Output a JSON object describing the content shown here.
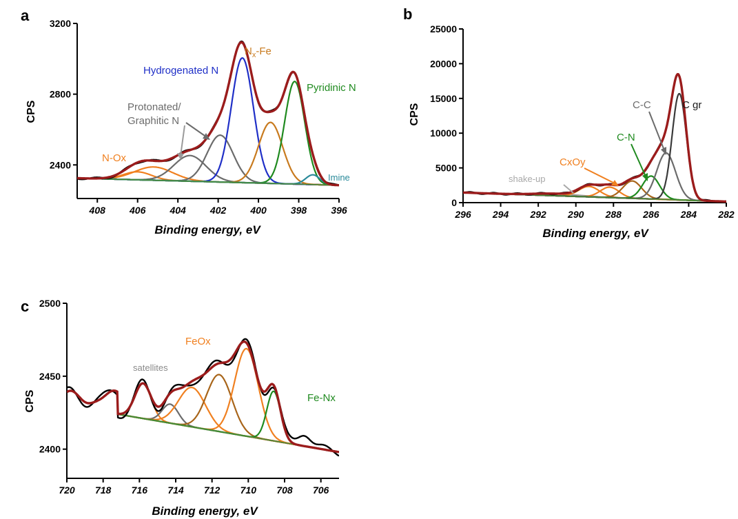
{
  "panels": {
    "a": {
      "letter": "a",
      "xlabel": "Binding energy, eV",
      "ylabel": "CPS",
      "annotations": {
        "hydrogenated": "Hydrogenated N",
        "nxfe_n": "N",
        "nxfe_sub": "x",
        "nxfe_rest": "-Fe",
        "pyridinic": "Pyridinic N",
        "protonated1": "Protonated/",
        "protonated2": "Graphitic N",
        "nox": "N-Ox",
        "imine": "Imine"
      }
    },
    "b": {
      "letter": "b",
      "xlabel": "Binding energy, eV",
      "ylabel": "CPS",
      "annotations": {
        "cc": "C-C",
        "cgr": "C gr",
        "cn": "C-N",
        "cxoy": "CxOy",
        "shakeup": "shake-up"
      }
    },
    "c": {
      "letter": "c",
      "xlabel": "Binding energy, eV",
      "ylabel": "CPS",
      "annotations": {
        "feox": "FeOx",
        "satellites": "satellites",
        "fenx": "Fe-Nx"
      }
    }
  },
  "colors": {
    "measured": "#000000",
    "envelope": "#9b1c1c",
    "background": "#4a8a3a",
    "hydrogenated": "#1f2fc7",
    "pyridinic": "#1f8a1f",
    "nxfe": "#c87a1e",
    "protonated": "#6b6b6b",
    "imine": "#2a8a9a",
    "orange": "#f08020",
    "brown": "#a8651a",
    "gray": "#6b6b6b",
    "darkgray": "#3a3a3a",
    "shakeup": "#a8a8a8"
  },
  "chart_data": [
    {
      "panel": "a",
      "type": "line",
      "xlabel": "Binding energy, eV",
      "ylabel": "CPS",
      "xlim": [
        409,
        396
      ],
      "ylim": [
        2210,
        3200
      ],
      "xticks": [
        408,
        406,
        404,
        402,
        400,
        398,
        396
      ],
      "yticks": [
        2400,
        2800,
        3200
      ],
      "baseline": [
        [
          409,
          2325
        ],
        [
          396,
          2285
        ]
      ],
      "components": [
        {
          "name": "N-Ox",
          "center": 405.2,
          "height": 75,
          "width": 0.95,
          "color": "orange"
        },
        {
          "name": "N-Ox 2",
          "center": 406.0,
          "height": 45,
          "width": 0.7,
          "color": "orange"
        },
        {
          "name": "Protonated",
          "center": 403.4,
          "height": 145,
          "width": 0.8,
          "color": "protonated"
        },
        {
          "name": "Graphitic",
          "center": 401.9,
          "height": 265,
          "width": 0.65,
          "color": "protonated"
        },
        {
          "name": "Hydrogenated N",
          "center": 400.8,
          "height": 705,
          "width": 0.55,
          "color": "hydrogenated"
        },
        {
          "name": "Nx-Fe",
          "center": 399.4,
          "height": 345,
          "width": 0.6,
          "color": "nxfe"
        },
        {
          "name": "Pyridinic N",
          "center": 398.2,
          "height": 580,
          "width": 0.5,
          "color": "pyridinic"
        },
        {
          "name": "Imine",
          "center": 397.3,
          "height": 55,
          "width": 0.35,
          "color": "imine"
        }
      ]
    },
    {
      "panel": "b",
      "type": "line",
      "xlabel": "Binding energy, eV",
      "ylabel": "CPS",
      "xlim": [
        296,
        282
      ],
      "ylim": [
        0,
        25000
      ],
      "xticks": [
        296,
        294,
        292,
        290,
        288,
        286,
        284,
        282
      ],
      "yticks": [
        0,
        5000,
        10000,
        15000,
        20000,
        25000
      ],
      "baseline": [
        [
          296,
          1450
        ],
        [
          283,
          250
        ]
      ],
      "components": [
        {
          "name": "shake-up",
          "center": 291.0,
          "height": 300,
          "width": 1.2,
          "color": "shakeup"
        },
        {
          "name": "CxOy 1",
          "center": 289.3,
          "height": 1500,
          "width": 0.55,
          "color": "orange"
        },
        {
          "name": "CxOy 2",
          "center": 288.2,
          "height": 1500,
          "width": 0.5,
          "color": "orange"
        },
        {
          "name": "CxOy 3",
          "center": 287.0,
          "height": 2500,
          "width": 0.5,
          "color": "brown"
        },
        {
          "name": "C-N",
          "center": 286.0,
          "height": 3300,
          "width": 0.45,
          "color": "pyridinic"
        },
        {
          "name": "C-C",
          "center": 285.2,
          "height": 6700,
          "width": 0.5,
          "color": "gray"
        },
        {
          "name": "C gr",
          "center": 284.5,
          "height": 15300,
          "width": 0.38,
          "color": "darkgray"
        }
      ]
    },
    {
      "panel": "c",
      "type": "line",
      "xlabel": "Binding energy, eV",
      "ylabel": "CPS",
      "xlim": [
        720,
        705
      ],
      "ylim": [
        2380,
        2500
      ],
      "xticks": [
        720,
        718,
        716,
        714,
        712,
        710,
        708,
        706
      ],
      "yticks": [
        2400,
        2450,
        2500
      ],
      "baseline": [
        [
          717.2,
          2424
        ],
        [
          705,
          2398
        ]
      ],
      "components": [
        {
          "name": "satellites 1",
          "center": 715.8,
          "height": 24,
          "width": 0.45,
          "color": "orange"
        },
        {
          "name": "satellites 2",
          "center": 714.3,
          "height": 13,
          "width": 0.45,
          "color": "gray"
        },
        {
          "name": "FeOx 1",
          "center": 713.1,
          "height": 27,
          "width": 0.75,
          "color": "orange"
        },
        {
          "name": "FeOx 2",
          "center": 711.6,
          "height": 39,
          "width": 0.7,
          "color": "brown"
        },
        {
          "name": "FeOx 3",
          "center": 710.1,
          "height": 60,
          "width": 0.65,
          "color": "orange"
        },
        {
          "name": "Fe-Nx",
          "center": 708.6,
          "height": 34,
          "width": 0.38,
          "color": "pyridinic"
        }
      ]
    }
  ]
}
